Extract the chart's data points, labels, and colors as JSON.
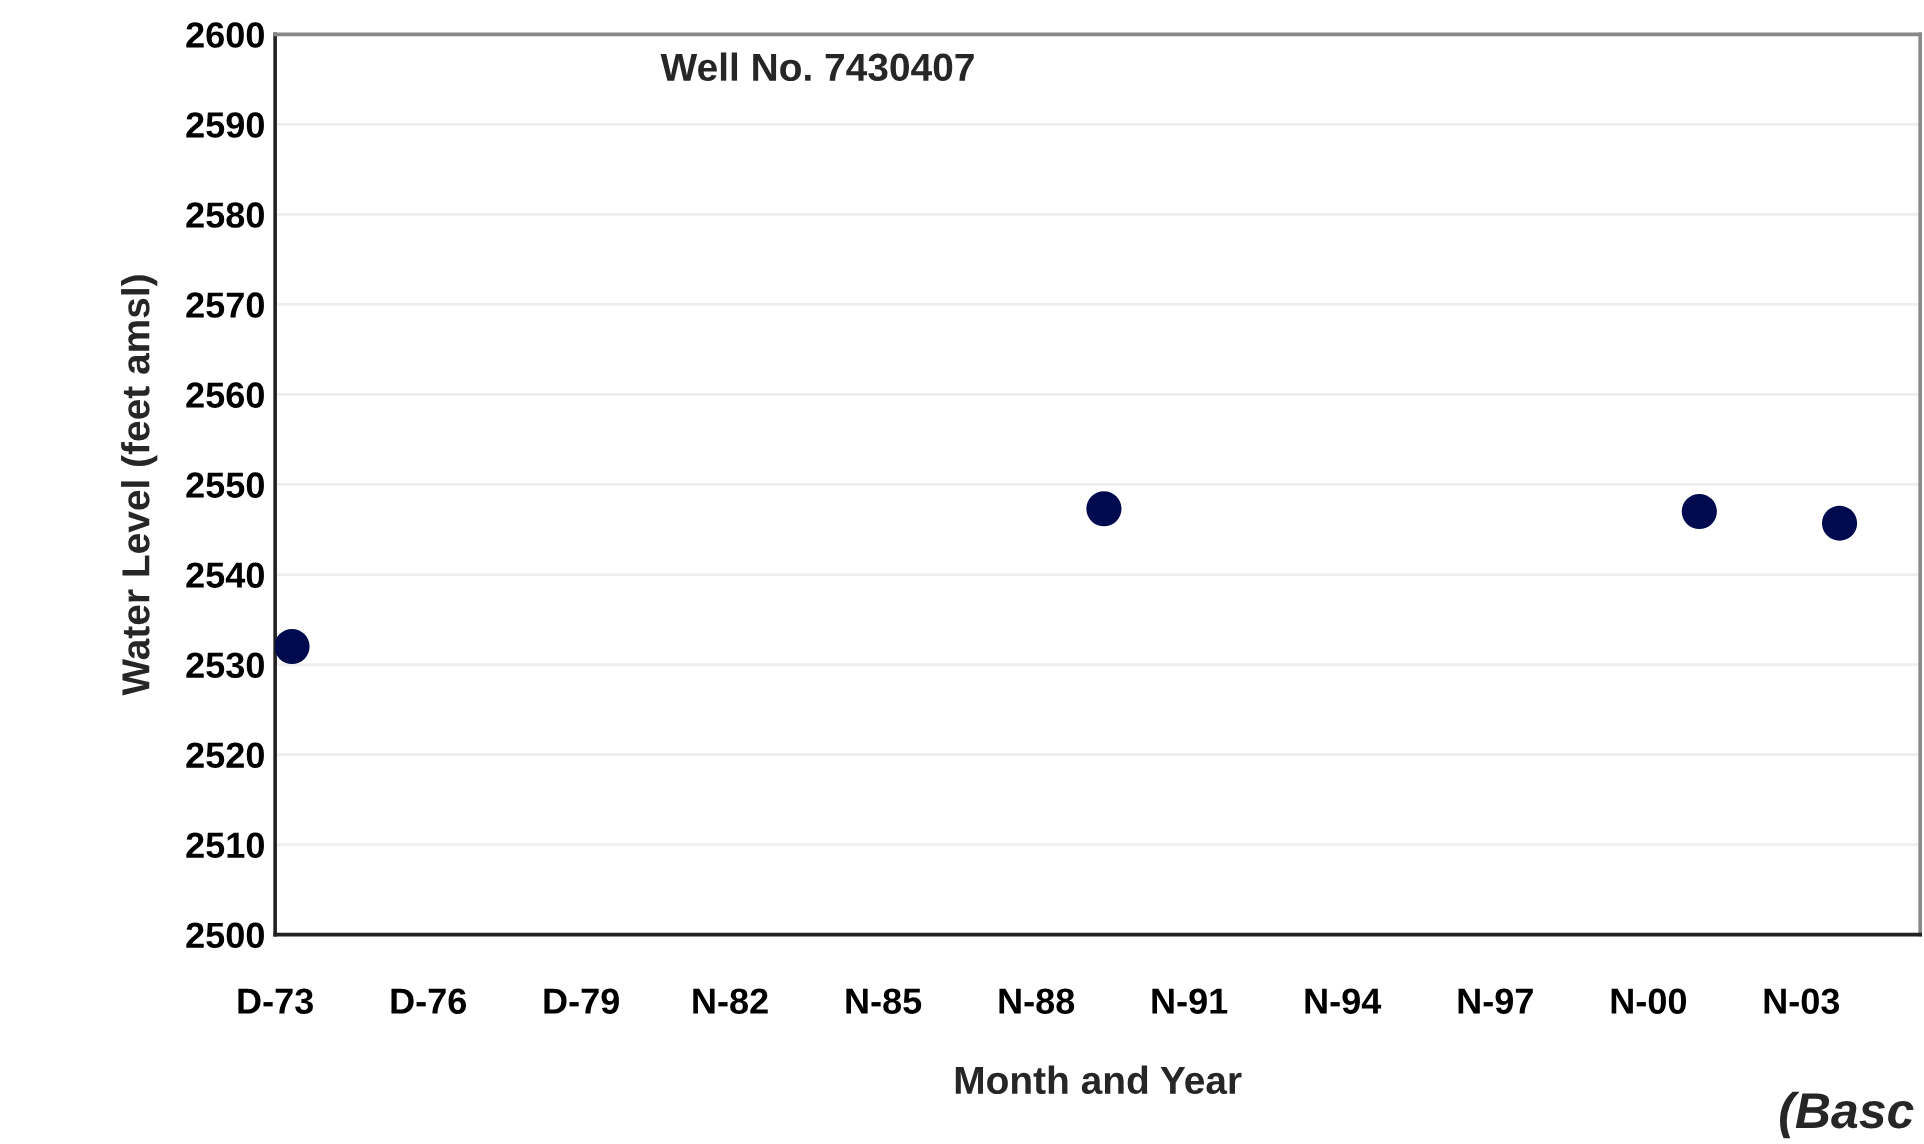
{
  "chart_data": {
    "type": "scatter",
    "title": "Well No. 7430407",
    "xlabel": "Month and Year",
    "ylabel": "Water Level (feet amsl)",
    "x": [
      "1974-04",
      "1990-03",
      "2001-11",
      "2004-08"
    ],
    "series": [
      {
        "color": "#000a4f",
        "values": [
          2532,
          2547.3,
          2547,
          2545.7
        ]
      }
    ],
    "marker": "circle",
    "xlim": [
      "1973-12",
      "2006-03"
    ],
    "xticks": [
      {
        "value": "1973-12",
        "label": "D-73"
      },
      {
        "value": "1976-12",
        "label": "D-76"
      },
      {
        "value": "1979-12",
        "label": "D-79"
      },
      {
        "value": "1982-11",
        "label": "N-82"
      },
      {
        "value": "1985-11",
        "label": "N-85"
      },
      {
        "value": "1988-11",
        "label": "N-88"
      },
      {
        "value": "1991-11",
        "label": "N-91"
      },
      {
        "value": "1994-11",
        "label": "N-94"
      },
      {
        "value": "1997-11",
        "label": "N-97"
      },
      {
        "value": "2000-11",
        "label": "N-00"
      },
      {
        "value": "2003-11",
        "label": "N-03"
      }
    ],
    "ylim": [
      2500,
      2600
    ],
    "yticks": [
      2500,
      2510,
      2520,
      2530,
      2540,
      2550,
      2560,
      2570,
      2580,
      2590,
      2600
    ],
    "grid": "y",
    "legend": false,
    "annotations": [
      "(Basc"
    ]
  }
}
